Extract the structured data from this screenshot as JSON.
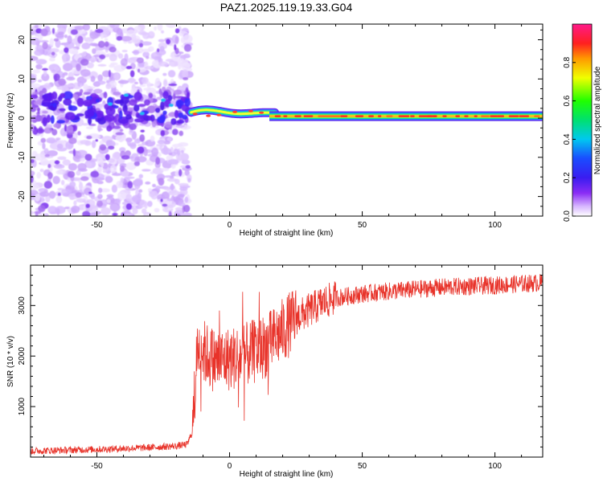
{
  "figure": {
    "title": "PAZ1.2025.119.19.33.G04"
  },
  "chart_data": [
    {
      "type": "heatmap",
      "xlabel": "Height of straight line (km)",
      "ylabel": "Frequency (Hz)",
      "xlim": [
        -75,
        118
      ],
      "ylim": [
        -25,
        24
      ],
      "xticks": [
        -50,
        0,
        50,
        100
      ],
      "yticks": [
        -20,
        -10,
        0,
        10,
        20
      ],
      "colorbar": {
        "label": "Normalized spectral amplitude",
        "range": [
          0,
          1
        ],
        "ticks": [
          "0.0",
          "0.2",
          "0.4",
          "0.6",
          "0.8"
        ],
        "colormap": "gist_rainbow-style (white→violet→blue→cyan→green→yellow→orange→red→magenta)"
      },
      "regions": [
        {
          "name": "noise",
          "x_range": [
            -75,
            -15
          ],
          "description": "scattered low-amplitude speckle, stronger near 0–5 Hz"
        },
        {
          "name": "transition",
          "x_range": [
            -15,
            15
          ],
          "freq_band": [
            -0.5,
            3
          ],
          "description": "wavy signal band"
        },
        {
          "name": "tone",
          "x_range": [
            15,
            118
          ],
          "freq_hz": 0.5,
          "description": "steady narrow band, red core"
        }
      ]
    },
    {
      "type": "line",
      "xlabel": "Height of straight line (km)",
      "ylabel": "SNR (10 * v/v)",
      "xlim": [
        -75,
        118
      ],
      "ylim": [
        0,
        3800
      ],
      "xticks": [
        -50,
        0,
        50,
        100
      ],
      "yticks": [
        1000,
        2000,
        3000
      ],
      "series": [
        {
          "name": "SNR",
          "color": "#e8332a",
          "x": [
            -75,
            -60,
            -45,
            -30,
            -20,
            -16,
            -14,
            -12,
            -10,
            -8,
            -5,
            0,
            5,
            10,
            15,
            20,
            25,
            30,
            35,
            40,
            50,
            60,
            70,
            80,
            90,
            100,
            110,
            118
          ],
          "y": [
            120,
            140,
            160,
            190,
            220,
            250,
            500,
            2200,
            2100,
            2000,
            1900,
            1950,
            2000,
            2100,
            2250,
            2500,
            2750,
            2900,
            3050,
            3150,
            3230,
            3280,
            3320,
            3360,
            3380,
            3400,
            3430,
            3450
          ]
        }
      ]
    }
  ]
}
